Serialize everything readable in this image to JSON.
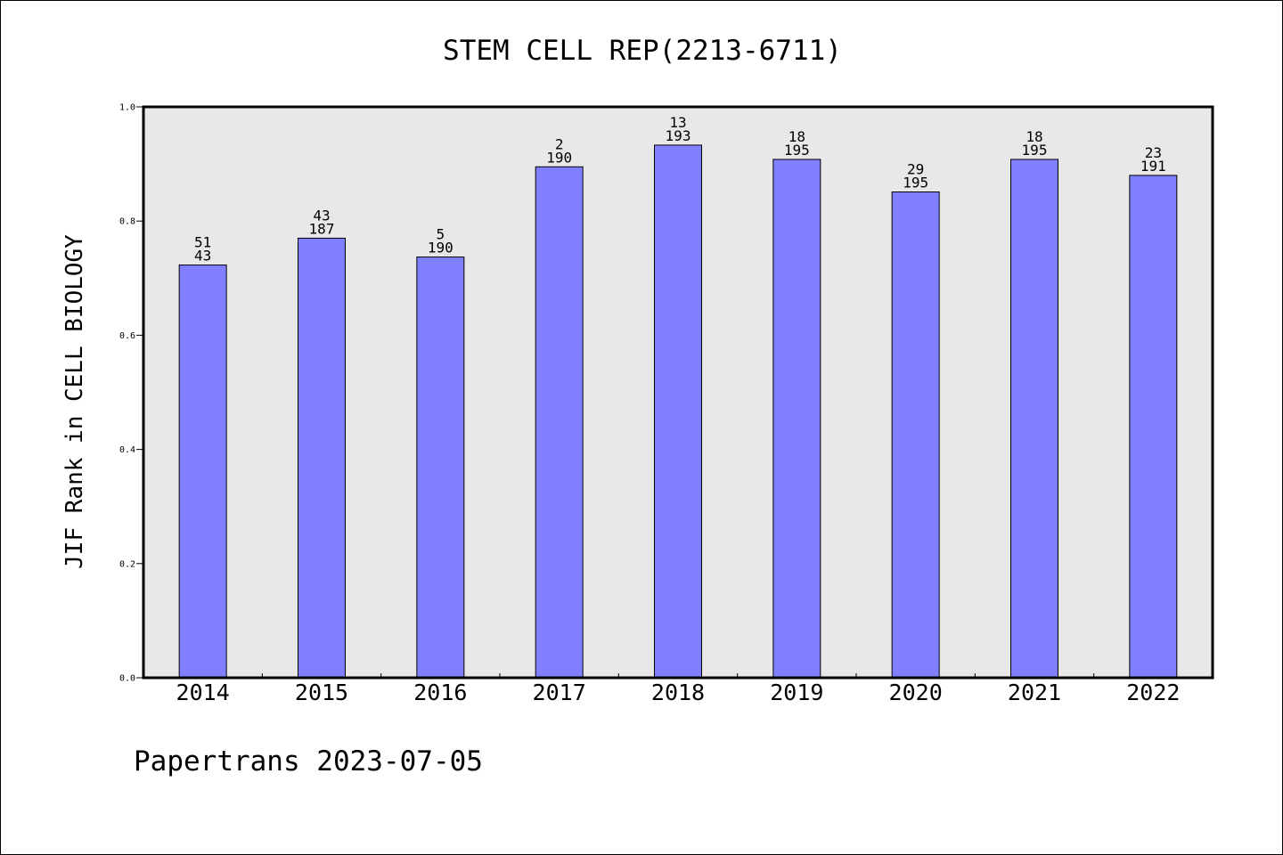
{
  "chart_data": {
    "type": "bar",
    "title": "STEM CELL REP(2213-6711)",
    "xlabel": "",
    "ylabel": "JIF Rank in CELL BIOLOGY",
    "ylim": [
      0,
      1.0
    ],
    "yticks": [
      "0.0",
      "0.2",
      "0.4",
      "0.6",
      "0.8",
      "1.0"
    ],
    "grid": false,
    "categories": [
      "2014",
      "2015",
      "2016",
      "2017",
      "2018",
      "2019",
      "2020",
      "2021",
      "2022"
    ],
    "values": [
      0.723,
      0.77,
      0.737,
      0.895,
      0.933,
      0.908,
      0.851,
      0.908,
      0.88
    ],
    "rank": [
      "51",
      "43",
      "5",
      "2",
      "13",
      "18",
      "29",
      "18",
      "23"
    ],
    "total": [
      "43",
      "187",
      "190",
      "190",
      "193",
      "195",
      "195",
      "195",
      "191"
    ],
    "colors": {
      "bar": "#8080ff",
      "plot_bg": "#e8e8e8",
      "border": "#000000"
    }
  },
  "footer": {
    "text": "Papertrans 2023-07-05"
  }
}
